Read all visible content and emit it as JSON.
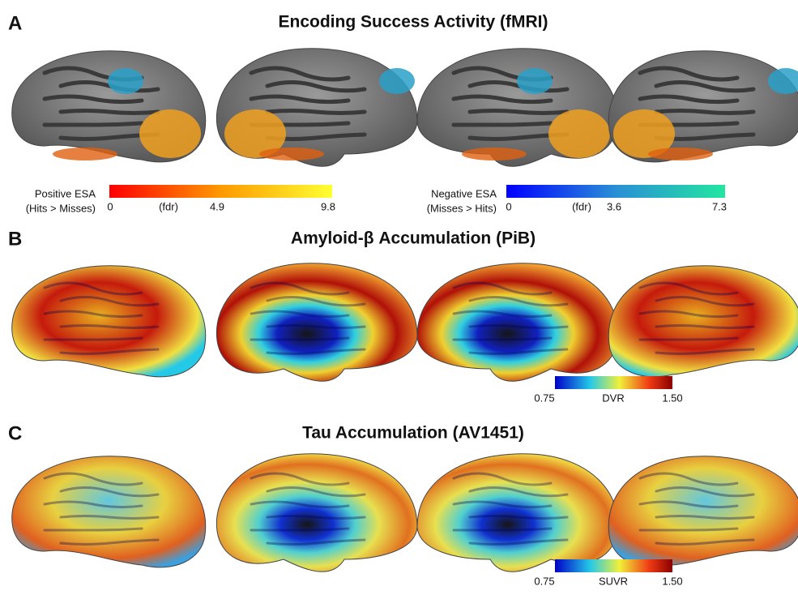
{
  "panels": [
    {
      "label": "A",
      "title": "Encoding Success Activity (fMRI)",
      "colorbars": [
        {
          "label_lines": [
            "Positive ESA",
            "(Hits > Misses)"
          ],
          "ticks": [
            "0",
            "(fdr)",
            "4.9",
            "9.8"
          ]
        },
        {
          "label_lines": [
            "Negative ESA",
            "(Misses > Hits)"
          ],
          "ticks": [
            "0",
            "(fdr)",
            "3.6",
            "7.3"
          ]
        }
      ]
    },
    {
      "label": "B",
      "title": "Amyloid-β Accumulation (PiB)",
      "colorbars": [
        {
          "ticks": [
            "0.75",
            "DVR",
            "1.50"
          ]
        }
      ]
    },
    {
      "label": "C",
      "title": "Tau Accumulation (AV1451)",
      "colorbars": [
        {
          "ticks": [
            "0.75",
            "SUVR",
            "1.50"
          ]
        }
      ]
    }
  ]
}
